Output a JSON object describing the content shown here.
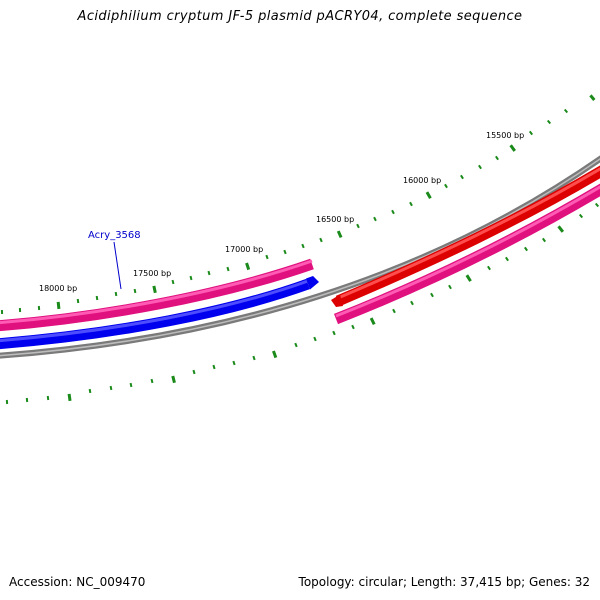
{
  "title": "Acidiphilium cryptum JF-5 plasmid pACRY04, complete sequence",
  "accession": "Accession: NC_009470",
  "summary": "Topology: circular; Length: 37,415 bp; Genes: 32",
  "colors": {
    "backbone": "#808080",
    "forward_gene": "#ff1493",
    "reverse_gene": "#0000ff",
    "red_gene": "#e00000",
    "ticks": "#1a8a1a",
    "gene_label": "#0000cc"
  },
  "tick_labels": [
    {
      "label": "15500 bp"
    },
    {
      "label": "16000 bp"
    },
    {
      "label": "16500 bp"
    },
    {
      "label": "17000 bp"
    },
    {
      "label": "17500 bp"
    },
    {
      "label": "18000 bp"
    }
  ],
  "gene_labels": [
    {
      "name": "Acry_3568"
    }
  ]
}
